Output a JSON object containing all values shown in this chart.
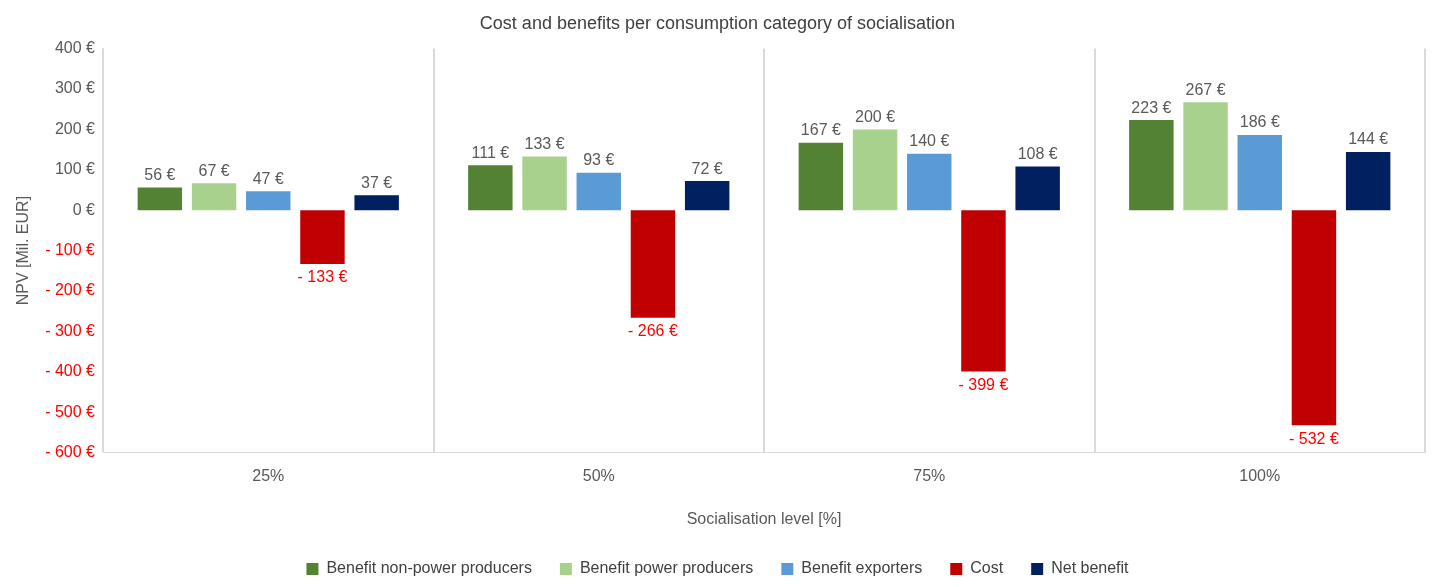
{
  "chart_data": {
    "type": "bar",
    "title": "Cost and benefits per consumption category of socialisation",
    "xlabel": "Socialisation level [%]",
    "ylabel": "NPV [Mil. EUR]",
    "categories": [
      "25%",
      "50%",
      "75%",
      "100%"
    ],
    "series": [
      {
        "name": "Benefit non-power producers",
        "color": "#548235",
        "values": [
          56,
          111,
          167,
          223
        ],
        "value_labels": [
          "56 €",
          "111 €",
          "167 €",
          "223 €"
        ]
      },
      {
        "name": "Benefit power producers",
        "color": "#a9d18e",
        "values": [
          67,
          133,
          200,
          267
        ],
        "value_labels": [
          "67 €",
          "133 €",
          "200 €",
          "267 €"
        ]
      },
      {
        "name": "Benefit exporters",
        "color": "#5b9bd5",
        "values": [
          47,
          93,
          140,
          186
        ],
        "value_labels": [
          "47 €",
          "93 €",
          "140 €",
          "186 €"
        ]
      },
      {
        "name": "Cost",
        "color": "#c00000",
        "values": [
          -133,
          -266,
          -399,
          -532
        ],
        "value_labels": [
          "- 133 €",
          "- 266 €",
          "- 399 €",
          "- 532 €"
        ]
      },
      {
        "name": "Net benefit",
        "color": "#002060",
        "values": [
          37,
          72,
          108,
          144
        ],
        "value_labels": [
          "37 €",
          "72 €",
          "108 €",
          "144 €"
        ]
      }
    ],
    "ylim": [
      -600,
      400
    ],
    "yticks": [
      {
        "value": -600,
        "label": "- 600 €"
      },
      {
        "value": -500,
        "label": "- 500 €"
      },
      {
        "value": -400,
        "label": "- 400 €"
      },
      {
        "value": -300,
        "label": "- 300 €"
      },
      {
        "value": -200,
        "label": "- 200 €"
      },
      {
        "value": -100,
        "label": "- 100 €"
      },
      {
        "value": 0,
        "label": "0 €"
      },
      {
        "value": 100,
        "label": "100 €"
      },
      {
        "value": 200,
        "label": "200 €"
      },
      {
        "value": 300,
        "label": "300 €"
      },
      {
        "value": 400,
        "label": "400 €"
      }
    ],
    "grid": "x",
    "legend": "bottom"
  }
}
